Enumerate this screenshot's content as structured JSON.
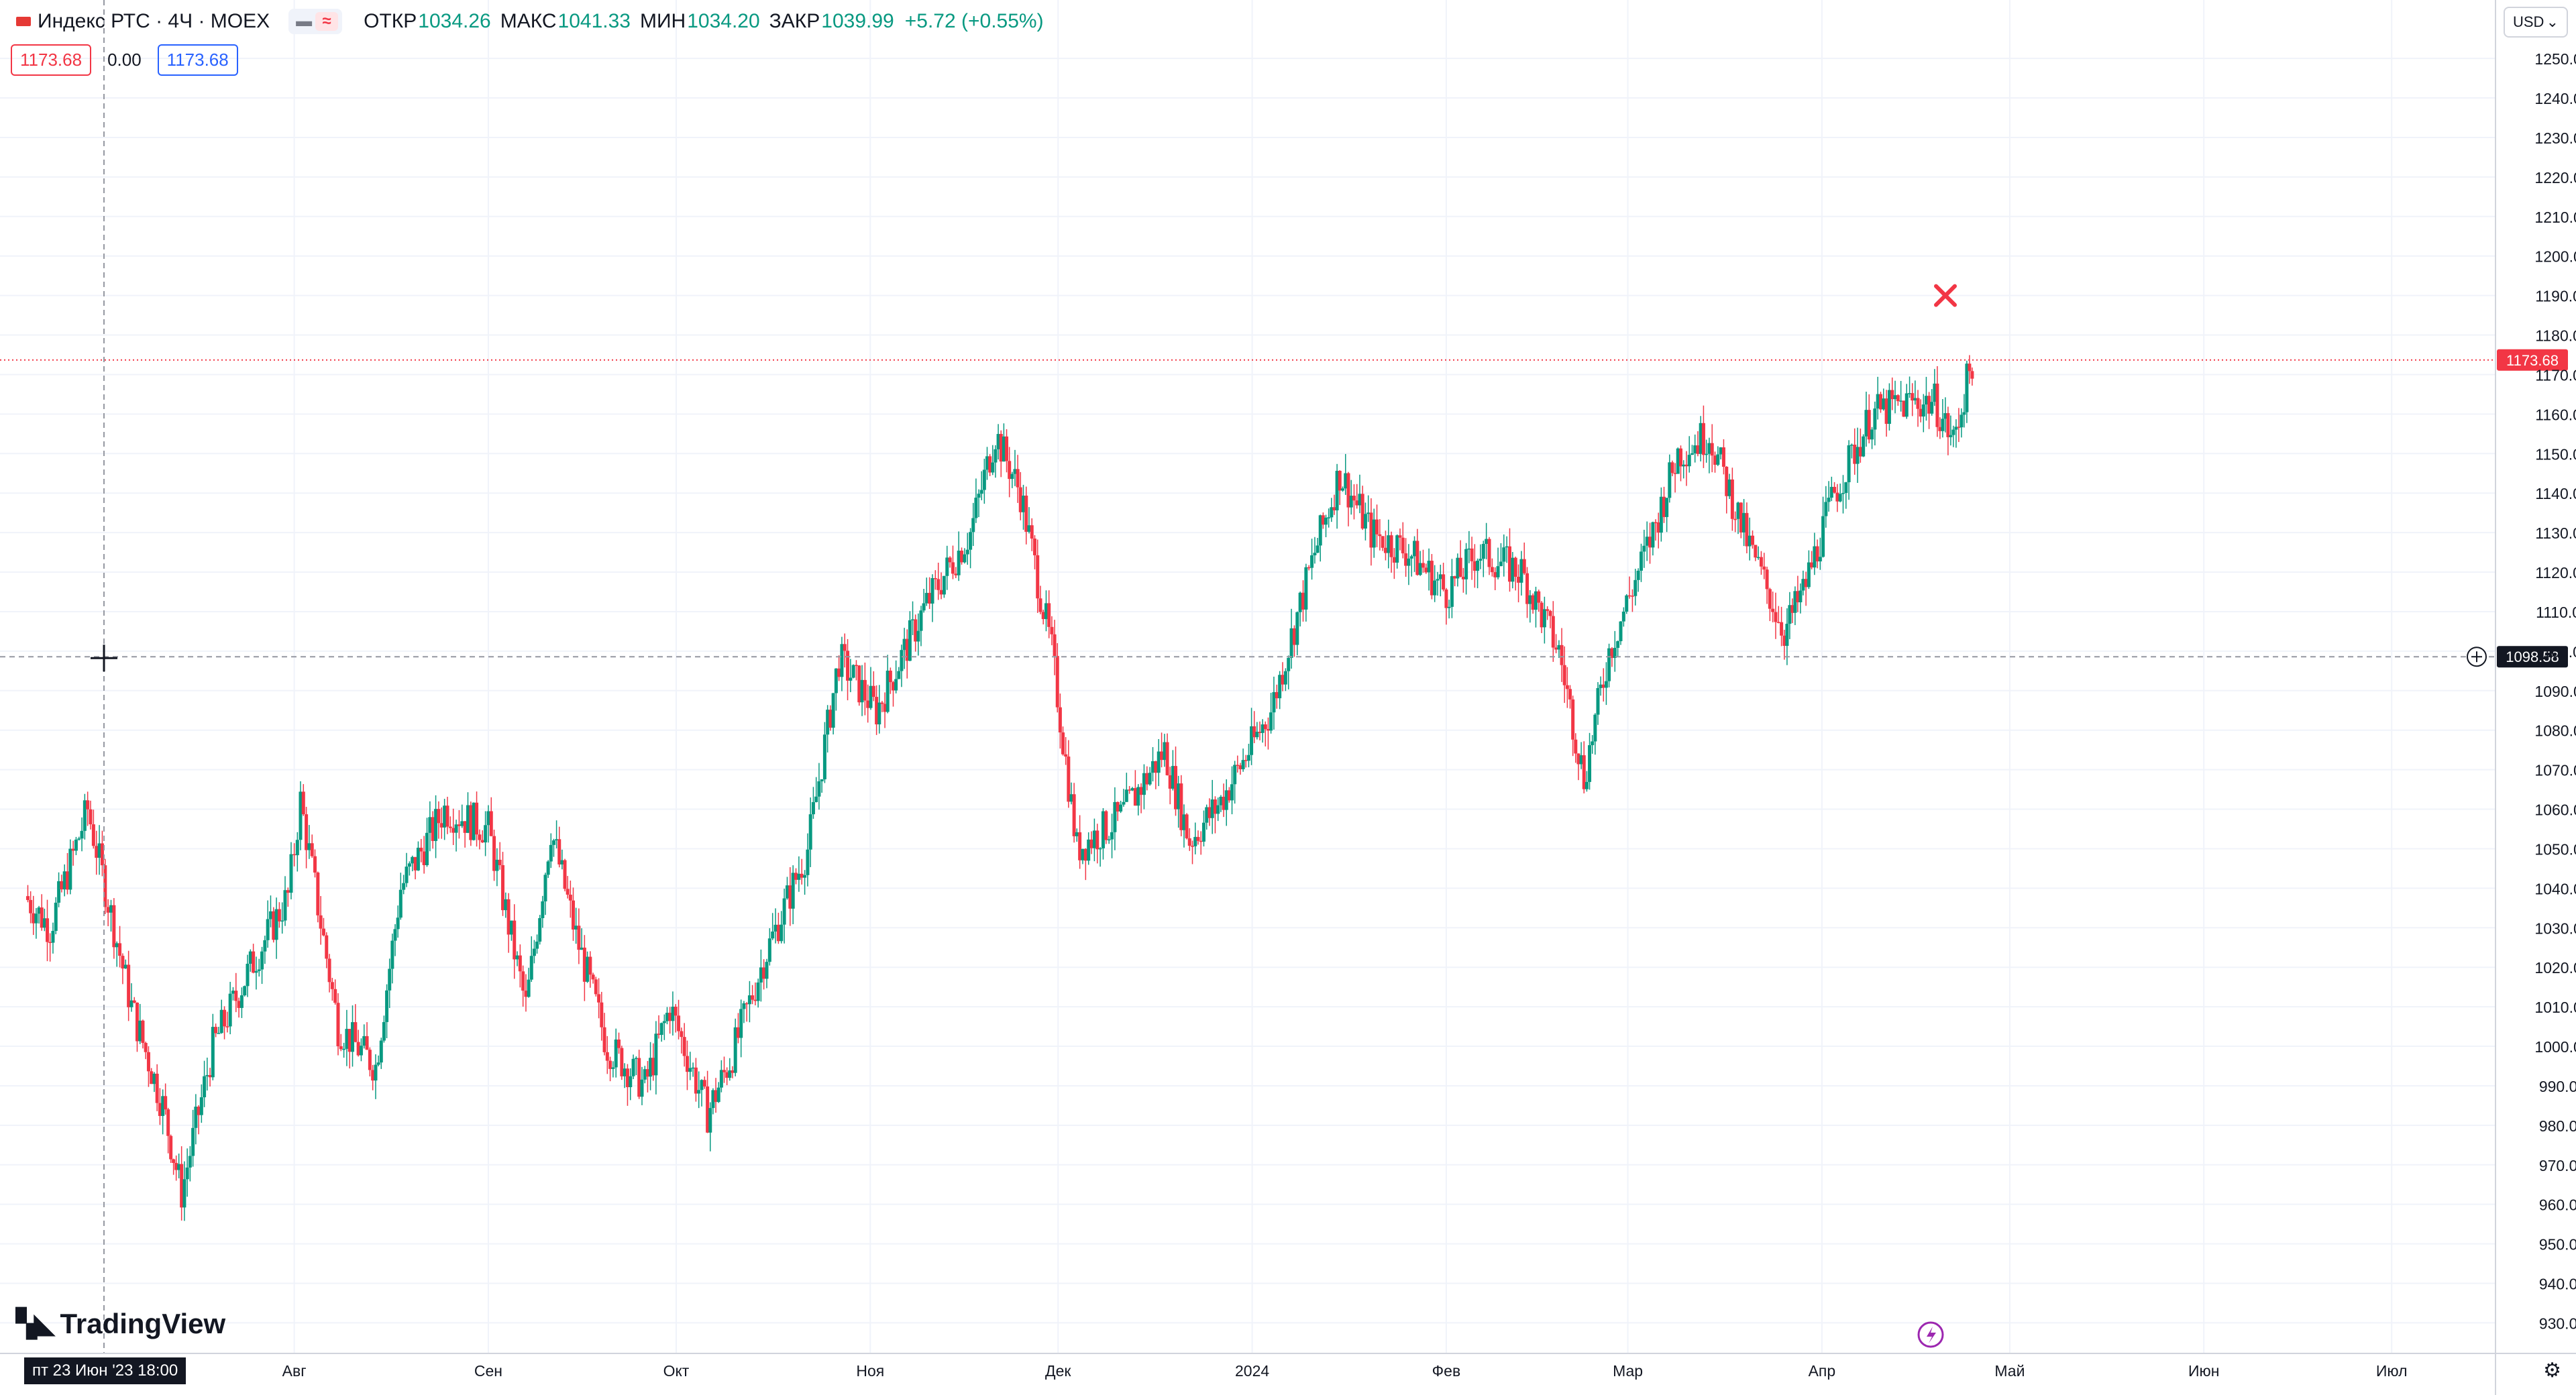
{
  "header": {
    "symbol": "Индекс РТС · 4Ч · MOEX",
    "open_label": "ОТКР",
    "open": "1034.26",
    "high_label": "МАКС",
    "high": "1041.33",
    "low_label": "МИН",
    "low": "1034.20",
    "close_label": "ЗАКР",
    "close": "1039.99",
    "change": "+5.72 (+0.55%)"
  },
  "toolbar": {
    "sell_price": "1173.68",
    "spread": "0.00",
    "buy_price": "1173.68",
    "currency": "USD",
    "currency_arrow": "⌄"
  },
  "brand": {
    "name": "TradingView"
  },
  "crosshair": {
    "date_label": "пт 23 Июн '23   18:00",
    "price_label": "1098.58"
  },
  "last_price_label": "1173.68",
  "colors": {
    "up": "#089981",
    "down": "#f23645",
    "grid": "#f0f3fa",
    "last_line": "#f23645",
    "crosshair": "#9598a1"
  },
  "chart_data": {
    "type": "candlestick",
    "interval": "4H",
    "y_ticks": [
      930,
      940,
      950,
      960,
      970,
      980,
      990,
      1000,
      1010,
      1020,
      1030,
      1040,
      1050,
      1060,
      1070,
      1080,
      1090,
      1100,
      1110,
      1120,
      1130,
      1140,
      1150,
      1160,
      1170,
      1180,
      1190,
      1200,
      1210,
      1220,
      1230,
      1240,
      1250
    ],
    "x_ticks": [
      "Авг",
      "Сен",
      "Окт",
      "Ноя",
      "Дек",
      "2024",
      "Фев",
      "Мар",
      "Апр",
      "Май",
      "Июн",
      "Июл"
    ],
    "ylim": [
      926,
      1258
    ],
    "last_price": 1173.68,
    "crosshair_price": 1098.58,
    "series_waypoints": [
      {
        "date": "2023-06-19",
        "price": 1038
      },
      {
        "date": "2023-06-23",
        "price": 1030
      },
      {
        "date": "2023-06-29",
        "price": 1060
      },
      {
        "date": "2023-07-06",
        "price": 1010
      },
      {
        "date": "2023-07-11",
        "price": 985
      },
      {
        "date": "2023-07-14",
        "price": 963
      },
      {
        "date": "2023-07-19",
        "price": 1000
      },
      {
        "date": "2023-07-25",
        "price": 1020
      },
      {
        "date": "2023-07-31",
        "price": 1038
      },
      {
        "date": "2023-08-02",
        "price": 1062
      },
      {
        "date": "2023-08-08",
        "price": 1005
      },
      {
        "date": "2023-08-14",
        "price": 995
      },
      {
        "date": "2023-08-18",
        "price": 1040
      },
      {
        "date": "2023-08-25",
        "price": 1060
      },
      {
        "date": "2023-09-01",
        "price": 1055
      },
      {
        "date": "2023-09-07",
        "price": 1010
      },
      {
        "date": "2023-09-11",
        "price": 1055
      },
      {
        "date": "2023-09-15",
        "price": 1028
      },
      {
        "date": "2023-09-20",
        "price": 1000
      },
      {
        "date": "2023-09-26",
        "price": 990
      },
      {
        "date": "2023-09-30",
        "price": 1010
      },
      {
        "date": "2023-10-06",
        "price": 983
      },
      {
        "date": "2023-10-10",
        "price": 998
      },
      {
        "date": "2023-10-15",
        "price": 1022
      },
      {
        "date": "2023-10-22",
        "price": 1050
      },
      {
        "date": "2023-10-27",
        "price": 1098
      },
      {
        "date": "2023-11-02",
        "price": 1085
      },
      {
        "date": "2023-11-10",
        "price": 1112
      },
      {
        "date": "2023-11-17",
        "price": 1130
      },
      {
        "date": "2023-11-21",
        "price": 1155
      },
      {
        "date": "2023-11-25",
        "price": 1140
      },
      {
        "date": "2023-11-30",
        "price": 1100
      },
      {
        "date": "2023-12-04",
        "price": 1050
      },
      {
        "date": "2023-12-11",
        "price": 1058
      },
      {
        "date": "2023-12-18",
        "price": 1075
      },
      {
        "date": "2023-12-22",
        "price": 1052
      },
      {
        "date": "2023-12-27",
        "price": 1062
      },
      {
        "date": "2024-01-04",
        "price": 1085
      },
      {
        "date": "2024-01-11",
        "price": 1125
      },
      {
        "date": "2024-01-15",
        "price": 1145
      },
      {
        "date": "2024-01-20",
        "price": 1130
      },
      {
        "date": "2024-01-26",
        "price": 1125
      },
      {
        "date": "2024-02-01",
        "price": 1115
      },
      {
        "date": "2024-02-06",
        "price": 1125
      },
      {
        "date": "2024-02-13",
        "price": 1120
      },
      {
        "date": "2024-02-19",
        "price": 1100
      },
      {
        "date": "2024-02-23",
        "price": 1068
      },
      {
        "date": "2024-02-27",
        "price": 1100
      },
      {
        "date": "2024-03-05",
        "price": 1130
      },
      {
        "date": "2024-03-09",
        "price": 1150
      },
      {
        "date": "2024-03-14",
        "price": 1155
      },
      {
        "date": "2024-03-20",
        "price": 1128
      },
      {
        "date": "2024-03-26",
        "price": 1105
      },
      {
        "date": "2024-03-29",
        "price": 1115
      },
      {
        "date": "2024-04-03",
        "price": 1140
      },
      {
        "date": "2024-04-09",
        "price": 1160
      },
      {
        "date": "2024-04-15",
        "price": 1163
      },
      {
        "date": "2024-04-19",
        "price": 1163
      },
      {
        "date": "2024-04-22",
        "price": 1153
      },
      {
        "date": "2024-04-25",
        "price": 1173.68
      }
    ]
  }
}
